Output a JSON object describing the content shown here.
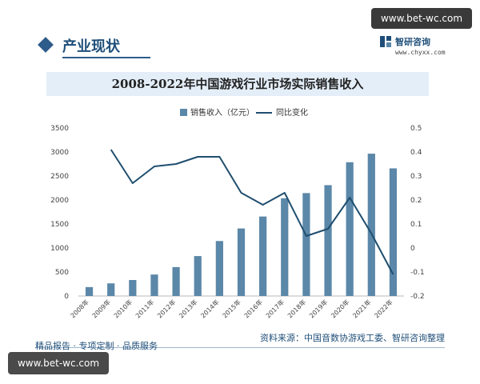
{
  "watermark": {
    "top_text": "www.bet-wc.com",
    "bottom_text": "www.bet-wc.com"
  },
  "header": {
    "section_title": "产业现状",
    "brand_name": "智研咨询",
    "brand_url": "www.chyxx.com"
  },
  "chart_data": {
    "type": "bar",
    "title": "2008-2022年中国游戏行业市场实际销售收入",
    "categories": [
      "2008年",
      "2009年",
      "2010年",
      "2011年",
      "2012年",
      "2013年",
      "2014年",
      "2015年",
      "2016年",
      "2017年",
      "2018年",
      "2019年",
      "2020年",
      "2021年",
      "2022年"
    ],
    "series": [
      {
        "name": "销售收入（亿元）",
        "type": "bar",
        "axis": "left",
        "values": [
          186,
          263,
          333,
          447,
          602,
          832,
          1145,
          1407,
          1656,
          2036,
          2144,
          2309,
          2787,
          2965,
          2659
        ]
      },
      {
        "name": "同比变化",
        "type": "line",
        "axis": "right",
        "values": [
          null,
          0.41,
          0.27,
          0.34,
          0.35,
          0.38,
          0.38,
          0.23,
          0.18,
          0.23,
          0.05,
          0.08,
          0.21,
          0.06,
          -0.11
        ]
      }
    ],
    "ylim_left": [
      0,
      3500
    ],
    "yticks_left": [
      "0",
      "500",
      "1000",
      "1500",
      "2000",
      "2500",
      "3000",
      "3500"
    ],
    "ylim_right": [
      -0.2,
      0.5
    ],
    "yticks_right": [
      "-0.2",
      "-0.1",
      "0",
      "0.1",
      "0.2",
      "0.3",
      "0.4",
      "0.5"
    ],
    "legend_position": "top-center",
    "colors": {
      "bar": "#5b87a8",
      "line": "#1f4e6e"
    }
  },
  "footer": {
    "left_text": "精品报告 · 专项定制 · 品质服务",
    "source": "资料来源：中国音数协游戏工委、智研咨询整理"
  }
}
